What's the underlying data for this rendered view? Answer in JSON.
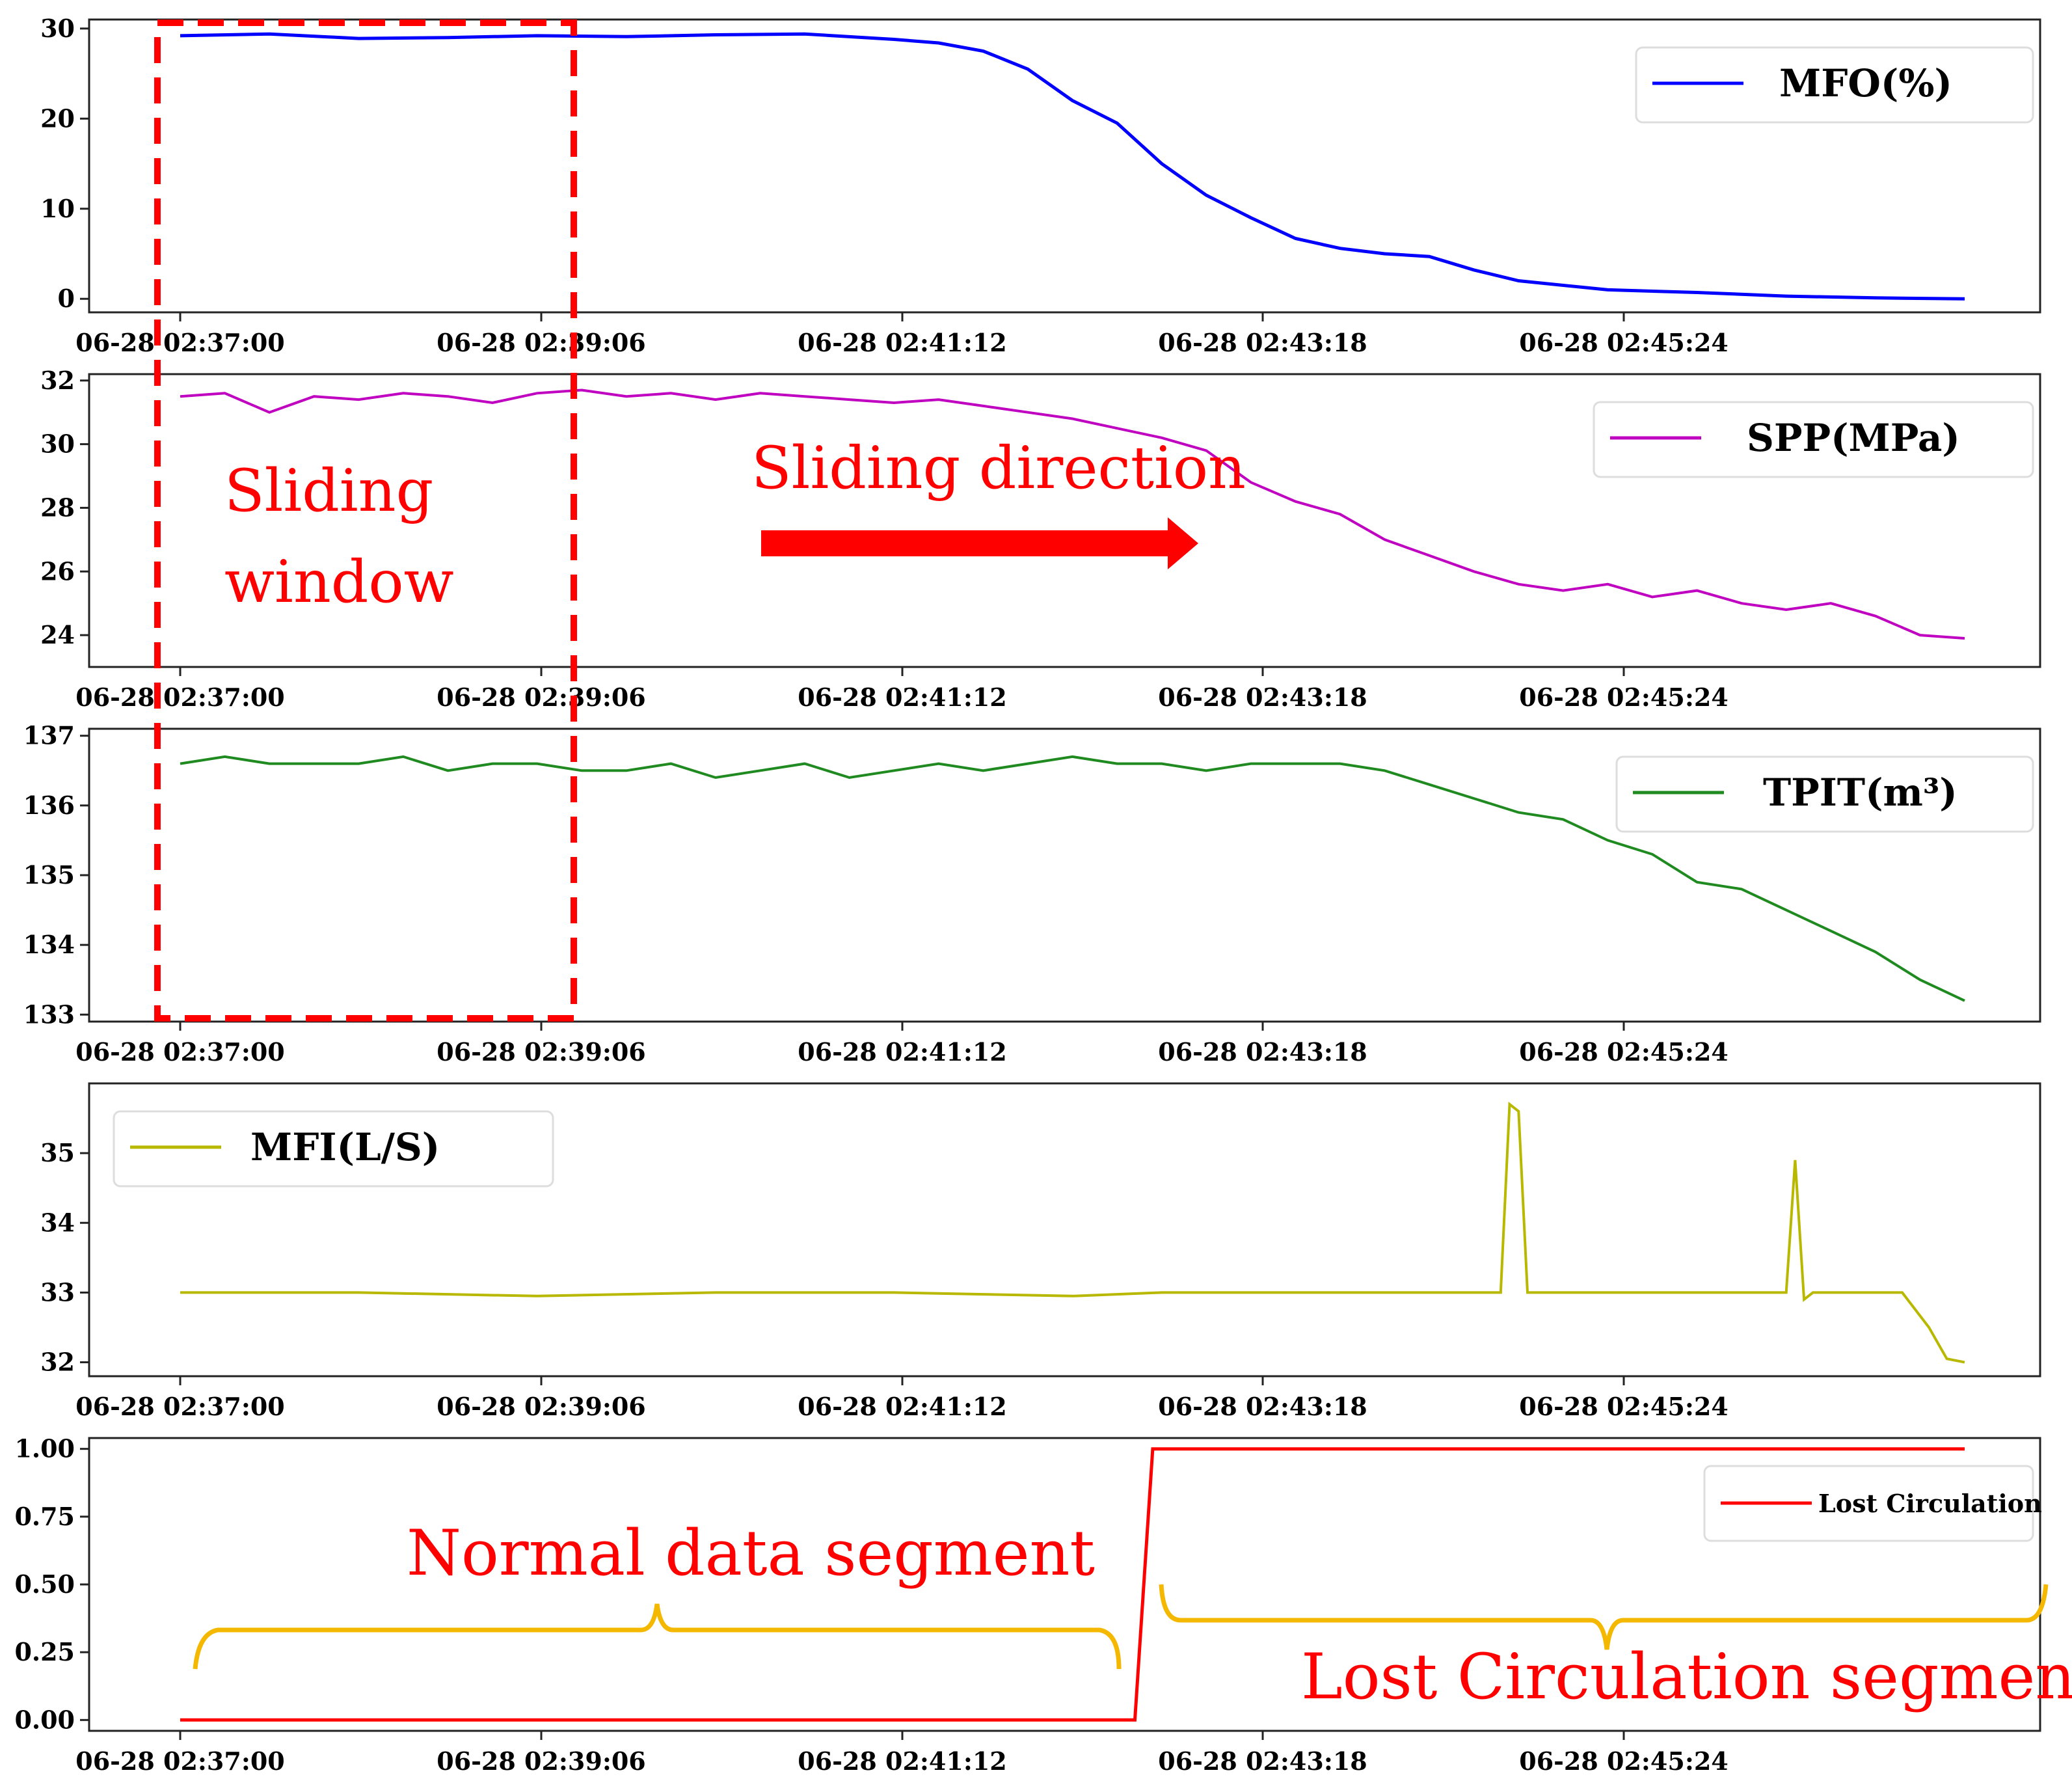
{
  "figure": {
    "x_ticks": [
      "06-28  02:37:00",
      "06-28  02:39:06",
      "06-28 02:41:12",
      "06-28  02:43:18",
      "06-28  02:45:24"
    ],
    "annotations": {
      "sliding_window": [
        "Sliding",
        "window"
      ],
      "sliding_direction": "Sliding direction",
      "normal_segment": "Normal data segment",
      "lost_segment": "Lost Circulation segment"
    },
    "colors": {
      "mfo": "#0000ff",
      "spp": "#c000c0",
      "tpit": "#1f8a1f",
      "mfi": "#b8b800",
      "lost": "#ff0000",
      "annotation": "#ff0000",
      "brace": "#f5b800"
    }
  },
  "chart_data": [
    {
      "type": "line",
      "name": "MFO",
      "legend": "MFO(%)",
      "ylim": [
        -1.5,
        31
      ],
      "y_ticks": [
        0,
        10,
        20,
        30
      ],
      "x": [
        0,
        10,
        20,
        30,
        40,
        50,
        60,
        70,
        80,
        85,
        90,
        95,
        100,
        105,
        110,
        115,
        120,
        125,
        130,
        135,
        140,
        145,
        150,
        160,
        170,
        180,
        190,
        200
      ],
      "values": [
        29.2,
        29.4,
        28.9,
        29.0,
        29.2,
        29.1,
        29.3,
        29.4,
        28.8,
        28.4,
        27.5,
        25.5,
        22.0,
        19.5,
        15.0,
        11.5,
        9.0,
        6.7,
        5.6,
        5.0,
        4.7,
        3.2,
        2.0,
        1.0,
        0.7,
        0.3,
        0.1,
        0.0
      ]
    },
    {
      "type": "line",
      "name": "SPP",
      "legend": "SPP(MPa)",
      "ylim": [
        23,
        32.2
      ],
      "y_ticks": [
        24,
        26,
        28,
        30,
        32
      ],
      "x": [
        0,
        5,
        10,
        15,
        20,
        25,
        30,
        35,
        40,
        45,
        50,
        55,
        60,
        65,
        70,
        75,
        80,
        85,
        90,
        95,
        100,
        105,
        110,
        115,
        120,
        125,
        130,
        135,
        140,
        145,
        150,
        155,
        160,
        165,
        170,
        175,
        180,
        185,
        190,
        195,
        200
      ],
      "values": [
        31.5,
        31.6,
        31.0,
        31.5,
        31.4,
        31.6,
        31.5,
        31.3,
        31.6,
        31.7,
        31.5,
        31.6,
        31.4,
        31.6,
        31.5,
        31.4,
        31.3,
        31.4,
        31.2,
        31.0,
        30.8,
        30.5,
        30.2,
        29.8,
        28.8,
        28.2,
        27.8,
        27.0,
        26.5,
        26.0,
        25.6,
        25.4,
        25.6,
        25.2,
        25.4,
        25.0,
        24.8,
        25.0,
        24.6,
        24.0,
        23.9
      ]
    },
    {
      "type": "line",
      "name": "TPIT",
      "legend": "TPIT(m³)",
      "ylim": [
        132.9,
        137.1
      ],
      "y_ticks": [
        133,
        134,
        135,
        136,
        137
      ],
      "x": [
        0,
        5,
        10,
        15,
        20,
        25,
        30,
        35,
        40,
        45,
        50,
        55,
        60,
        65,
        70,
        75,
        80,
        85,
        90,
        95,
        100,
        105,
        110,
        115,
        120,
        125,
        130,
        135,
        140,
        145,
        150,
        155,
        160,
        165,
        170,
        175,
        180,
        185,
        190,
        195,
        200
      ],
      "values": [
        136.6,
        136.7,
        136.6,
        136.6,
        136.6,
        136.7,
        136.5,
        136.6,
        136.6,
        136.5,
        136.5,
        136.6,
        136.4,
        136.5,
        136.6,
        136.4,
        136.5,
        136.6,
        136.5,
        136.6,
        136.7,
        136.6,
        136.6,
        136.5,
        136.6,
        136.6,
        136.6,
        136.5,
        136.3,
        136.1,
        135.9,
        135.8,
        135.5,
        135.3,
        134.9,
        134.8,
        134.5,
        134.2,
        133.9,
        133.5,
        133.2
      ]
    },
    {
      "type": "line",
      "name": "MFI",
      "legend": "MFI(L/S)",
      "ylim": [
        31.8,
        36.0
      ],
      "y_ticks": [
        32,
        33,
        34,
        35
      ],
      "x": [
        0,
        20,
        40,
        60,
        80,
        100,
        110,
        120,
        148,
        149,
        150,
        151,
        180,
        181,
        182,
        183,
        193,
        196,
        198,
        200
      ],
      "values": [
        33.0,
        33.0,
        32.95,
        33.0,
        33.0,
        32.95,
        33.0,
        33.0,
        33.0,
        35.7,
        35.6,
        33.0,
        33.0,
        34.9,
        32.9,
        33.0,
        33.0,
        32.5,
        32.05,
        32.0
      ]
    },
    {
      "type": "line",
      "name": "Lost Circulation",
      "legend": "Lost Circulation",
      "ylim": [
        -0.04,
        1.04
      ],
      "y_ticks": [
        "0.00",
        "0.25",
        "0.50",
        "0.75",
        "1.00"
      ],
      "x": [
        0,
        107,
        109,
        200
      ],
      "values": [
        0,
        0,
        1,
        1
      ]
    }
  ]
}
